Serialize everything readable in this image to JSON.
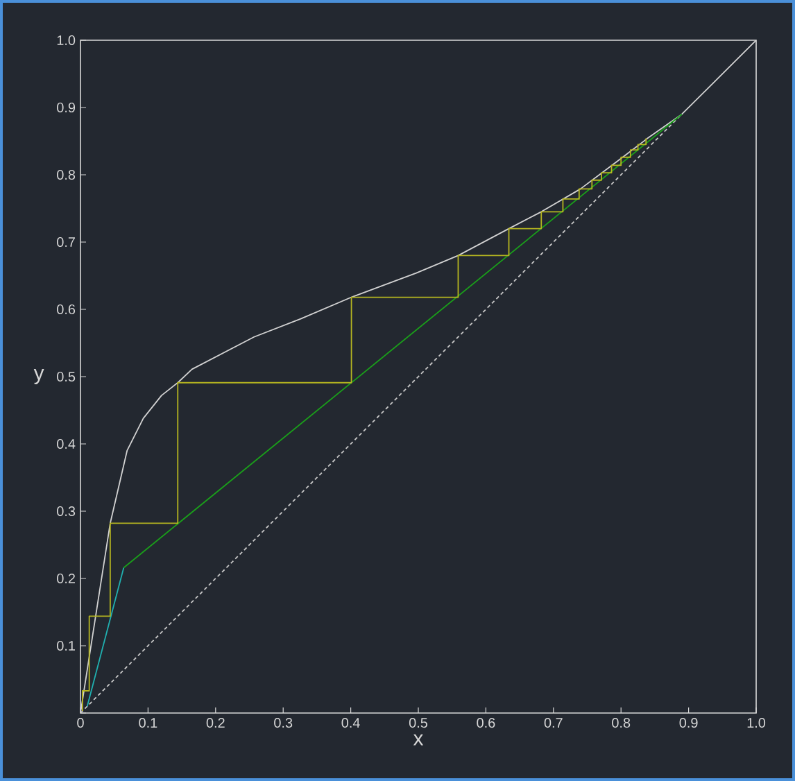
{
  "chart_data": {
    "type": "line",
    "xlabel": "x",
    "ylabel": "y",
    "xlim": [
      0,
      1
    ],
    "ylim": [
      0,
      1
    ],
    "xticks": [
      0,
      0.1,
      0.2,
      0.3,
      0.4,
      0.5,
      0.6,
      0.7,
      0.8,
      0.9,
      {
        "value": 1,
        "label": "1.0"
      }
    ],
    "yticks": [
      {
        "value": 0,
        "label": null
      },
      0.1,
      0.2,
      0.3,
      0.4,
      0.5,
      0.6,
      0.7,
      0.8,
      0.9,
      {
        "value": 1,
        "label": "1.0"
      }
    ],
    "series": [
      {
        "color": "#c8c8c8",
        "line_style": "dashed",
        "x": [
          0,
          0.89
        ],
        "values": [
          0,
          0.89
        ]
      },
      {
        "color": "#d2d2d2",
        "x": [
          0,
          0.044,
          0.069,
          0.093,
          0.12,
          0.144,
          0.165,
          0.257,
          0.326,
          0.401,
          0.497,
          0.559,
          0.634,
          0.682,
          0.74,
          0.801,
          0.839,
          0.89,
          1
        ],
        "values": [
          0,
          0.282,
          0.39,
          0.438,
          0.472,
          0.491,
          0.511,
          0.559,
          0.586,
          0.618,
          0.654,
          0.68,
          0.72,
          0.745,
          0.779,
          0.825,
          0.854,
          0.89,
          1
        ]
      },
      {
        "color": "#20b0b0",
        "x": [
          0.01,
          0.064
        ],
        "values": [
          0.01,
          0.216
        ]
      },
      {
        "color": "#1aa01a",
        "x": [
          0.064,
          0.89
        ],
        "values": [
          0.216,
          0.89
        ]
      },
      {
        "color": "#b5b520",
        "x": [
          0.003,
          0.003,
          0.013,
          0.013,
          0.044,
          0.044,
          0.144,
          0.144,
          0.401,
          0.401,
          0.559,
          0.559,
          0.634,
          0.634,
          0.682,
          0.682,
          0.714,
          0.714,
          0.738,
          0.738,
          0.757,
          0.757,
          0.771,
          0.771,
          0.786,
          0.786,
          0.8,
          0.8,
          0.814,
          0.814,
          0.825,
          0.825,
          0.837,
          0.837
        ],
        "values": [
          0.003,
          0.033,
          0.033,
          0.144,
          0.144,
          0.282,
          0.282,
          0.491,
          0.491,
          0.618,
          0.618,
          0.68,
          0.68,
          0.72,
          0.72,
          0.745,
          0.745,
          0.764,
          0.764,
          0.779,
          0.779,
          0.792,
          0.792,
          0.803,
          0.803,
          0.814,
          0.814,
          0.826,
          0.826,
          0.837,
          0.837,
          0.845,
          0.845,
          0.854
        ]
      }
    ]
  }
}
